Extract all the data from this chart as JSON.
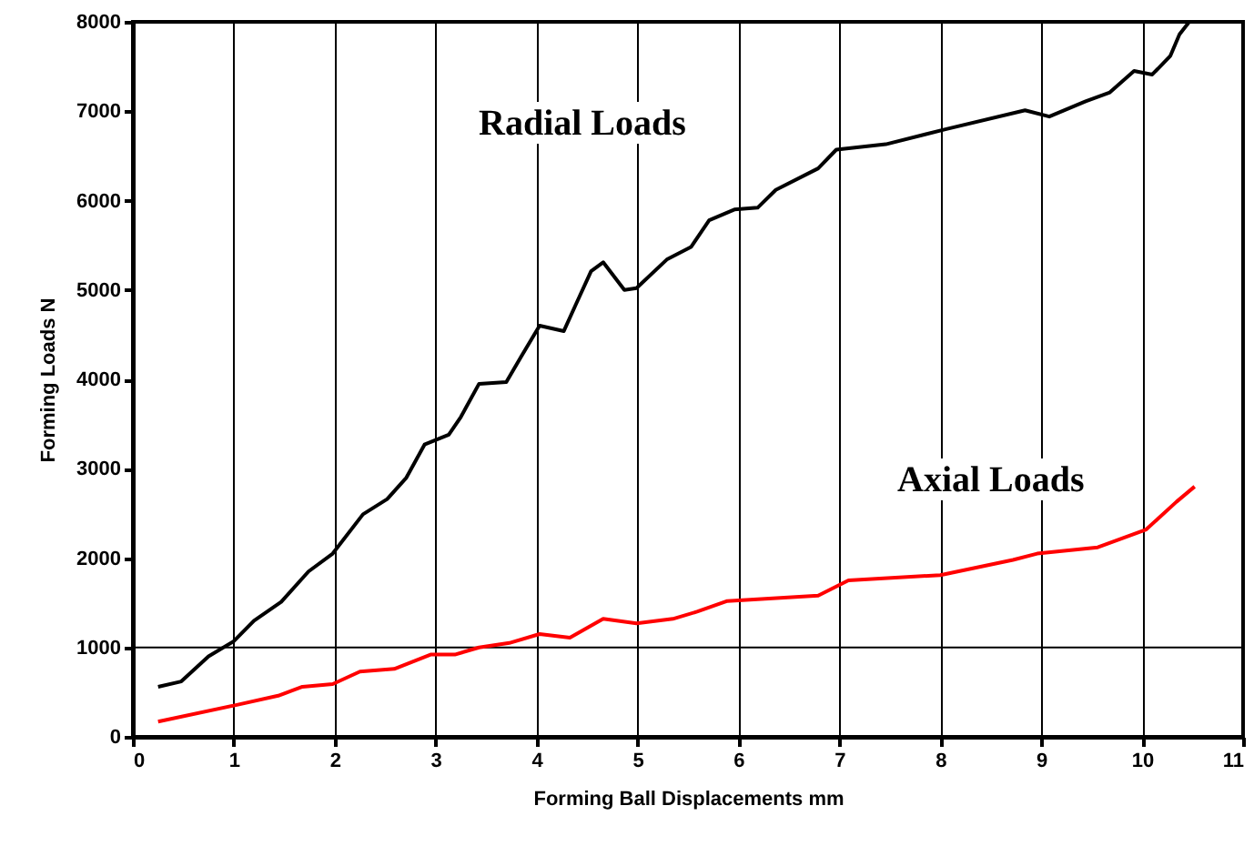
{
  "chart_data": {
    "type": "line",
    "xlabel": "Forming Ball Displacements  mm",
    "ylabel": "Forming Loads  N",
    "xlim": [
      0,
      11
    ],
    "xticks": [
      0,
      1,
      2,
      3,
      4,
      5,
      6,
      7,
      8,
      9,
      10,
      11
    ],
    "ylim": [
      0,
      8000
    ],
    "yticks": [
      0,
      1000,
      2000,
      3000,
      4000,
      5000,
      6000,
      7000,
      8000
    ],
    "grid": "x",
    "ref_lines": [
      {
        "axis": "y",
        "value": 1000
      }
    ],
    "series": [
      {
        "name": "Radial Loads",
        "color": "#000000",
        "x": [
          0.25,
          0.48,
          0.75,
          1.0,
          1.2,
          1.47,
          1.74,
          1.98,
          2.28,
          2.52,
          2.71,
          2.89,
          3.13,
          3.25,
          3.43,
          3.7,
          3.85,
          4.03,
          4.27,
          4.39,
          4.54,
          4.66,
          4.87,
          4.99,
          5.29,
          5.53,
          5.71,
          5.96,
          6.19,
          6.37,
          6.79,
          6.97,
          7.46,
          8.06,
          8.84,
          9.08,
          9.44,
          9.68,
          9.92,
          10.1,
          10.28,
          10.37,
          10.46
        ],
        "values": [
          560,
          620,
          900,
          1070,
          1300,
          1510,
          1850,
          2050,
          2490,
          2660,
          2900,
          3270,
          3380,
          3580,
          3950,
          3970,
          4260,
          4600,
          4540,
          4840,
          5210,
          5310,
          5000,
          5020,
          5340,
          5480,
          5780,
          5900,
          5920,
          6120,
          6360,
          6570,
          6630,
          6800,
          7010,
          6940,
          7110,
          7210,
          7450,
          7410,
          7620,
          7860,
          7990
        ]
      },
      {
        "name": "Axial Loads",
        "color": "#ff0000",
        "x": [
          0.25,
          1.0,
          1.44,
          1.68,
          1.98,
          2.25,
          2.59,
          2.95,
          3.19,
          3.43,
          3.73,
          4.03,
          4.33,
          4.66,
          4.99,
          5.35,
          5.59,
          5.89,
          6.79,
          7.09,
          8.0,
          8.72,
          8.96,
          9.56,
          10.04,
          10.34,
          10.52
        ],
        "values": [
          170,
          350,
          460,
          560,
          590,
          730,
          760,
          920,
          920,
          1000,
          1050,
          1150,
          1110,
          1320,
          1270,
          1320,
          1400,
          1520,
          1580,
          1750,
          1810,
          1980,
          2050,
          2120,
          2320,
          2630,
          2800
        ]
      }
    ]
  }
}
